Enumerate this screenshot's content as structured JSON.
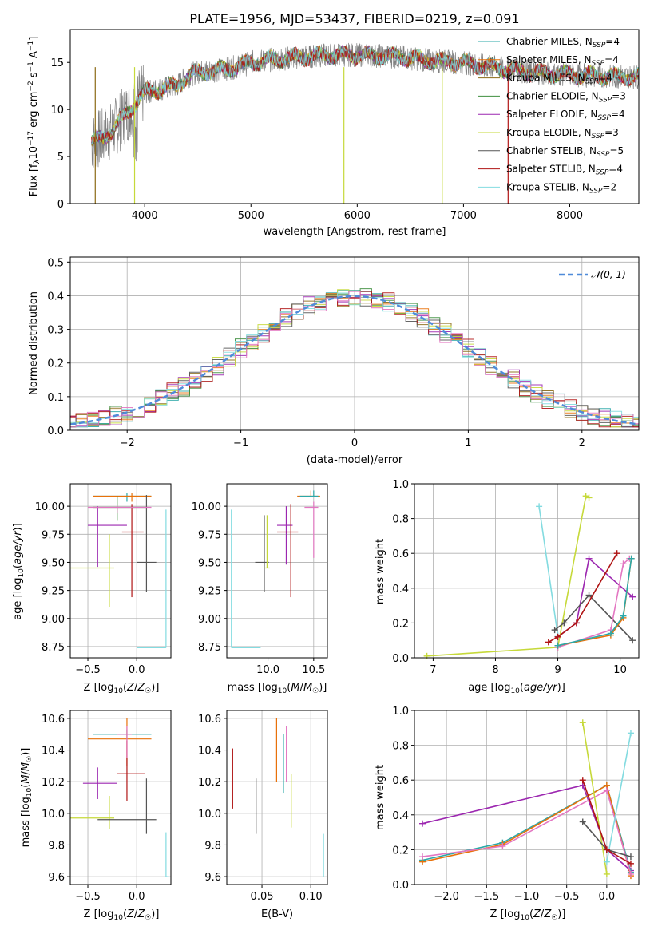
{
  "colors": {
    "Chabrier MILES": "#2ca8a8",
    "Salpeter MILES": "#e8710a",
    "Kroupa MILES": "#8b6914",
    "Chabrier ELODIE": "#3f8f3f",
    "Salpeter ELODIE": "#9c27b0",
    "Kroupa ELODIE": "#c6d93a",
    "Chabrier STELIB": "#555555",
    "Salpeter STELIB": "#b01515",
    "Kroupa STELIB": "#83dbe0"
  },
  "spectrum": {
    "title": "PLATE=1956, MJD=53437, FIBERID=0219, z=0.091",
    "xlabel": "wavelength [Angstrom, rest frame]",
    "ylabel": "Flux [fλ10⁻¹⁷ erg cm⁻² s⁻¹ A⁻¹]",
    "xlim": [
      3300,
      8650
    ],
    "ylim": [
      0,
      18.5
    ],
    "xticks": [
      4000,
      5000,
      6000,
      7000,
      8000
    ],
    "yticks": [
      0,
      5,
      10,
      15
    ],
    "legend": [
      {
        "label": "Chabrier MILES, N",
        "sub": "SSP",
        "n": "=4",
        "color": "#2ca8a8"
      },
      {
        "label": "Salpeter MILES, N",
        "sub": "SSP",
        "n": "=4",
        "color": "#e8710a"
      },
      {
        "label": "Kroupa MILES, N",
        "sub": "SSP",
        "n": "=4",
        "color": "#8b6914"
      },
      {
        "label": "Chabrier ELODIE, N",
        "sub": "SSP",
        "n": "=3",
        "color": "#3f8f3f"
      },
      {
        "label": "Salpeter ELODIE, N",
        "sub": "SSP",
        "n": "=4",
        "color": "#9c27b0"
      },
      {
        "label": "Kroupa ELODIE, N",
        "sub": "SSP",
        "n": "=3",
        "color": "#c6d93a"
      },
      {
        "label": "Chabrier STELIB, N",
        "sub": "SSP",
        "n": "=5",
        "color": "#555555"
      },
      {
        "label": "Salpeter STELIB, N",
        "sub": "SSP",
        "n": "=4",
        "color": "#b01515"
      },
      {
        "label": "Kroupa STELIB, N",
        "sub": "SSP",
        "n": "=2",
        "color": "#83dbe0"
      }
    ]
  },
  "chart_data": [
    {
      "type": "line",
      "title": "PLATE=1956, MJD=53437, FIBERID=0219, z=0.091",
      "xlabel": "wavelength [Angstrom, rest frame]",
      "ylabel": "Flux [fλ10⁻¹⁷ erg cm⁻² s⁻¹ A⁻¹]",
      "xlim": [
        3300,
        8650
      ],
      "ylim": [
        0,
        18.5
      ],
      "x": [
        3500,
        3600,
        3700,
        3800,
        3900,
        4000,
        4100,
        4200,
        4300,
        4400,
        4500,
        4700,
        4900,
        5000,
        5200,
        5400,
        5600,
        5800,
        6000,
        6200,
        6400,
        6600,
        6800,
        7000,
        7200,
        7400,
        7600,
        7800,
        8000,
        8200,
        8400,
        8600
      ],
      "series": [
        {
          "name": "data",
          "values": [
            6.5,
            7.0,
            7.8,
            9.2,
            10.5,
            11.8,
            12.1,
            12.3,
            12.5,
            13.5,
            14.0,
            14.2,
            14.6,
            15.0,
            15.3,
            15.5,
            15.7,
            15.8,
            15.8,
            15.7,
            15.6,
            15.3,
            15.1,
            15.0,
            14.6,
            14.3,
            14.0,
            13.8,
            13.7,
            13.6,
            13.5,
            13.5
          ]
        }
      ],
      "legend_position": "upper-right"
    },
    {
      "type": "histogram",
      "xlabel": "(data-model)/error",
      "ylabel": "Normed distribution",
      "xlim": [
        -2.5,
        2.5
      ],
      "ylim": [
        0,
        0.515
      ],
      "xticks": [
        -2,
        -1,
        0,
        1,
        2
      ],
      "yticks": [
        0.0,
        0.1,
        0.2,
        0.3,
        0.4,
        0.5
      ],
      "reference_curve": {
        "name": "𝒩(0, 1)",
        "mean": 0,
        "sigma": 1,
        "color": "#4f8bd9",
        "style": "dashed"
      },
      "legend_position": "upper-right"
    },
    {
      "type": "scatter-errorbar",
      "xlabel": "Z [log₁₀(Z/Z☉)]",
      "ylabel": "age  [log₁₀(age/yr)]",
      "xlim": [
        -0.68,
        0.35
      ],
      "ylim": [
        8.65,
        10.2
      ],
      "xticks": [
        -0.5,
        0.0
      ],
      "yticks": [
        8.75,
        9.0,
        9.25,
        9.5,
        9.75,
        10.0
      ],
      "points": [
        {
          "model": "Chabrier MILES",
          "x": -0.1,
          "y": 10.09,
          "xerr": [
            0.35,
            0.25
          ],
          "yerr": [
            0.05,
            0.03
          ]
        },
        {
          "model": "Salpeter MILES",
          "x": -0.05,
          "y": 10.09,
          "xerr": [
            0.4,
            0.2
          ],
          "yerr": [
            0.05,
            0.03
          ]
        },
        {
          "model": "Chabrier ELODIE",
          "x": -0.2,
          "y": 9.99,
          "xerr": [
            0.25,
            0.3
          ],
          "yerr": [
            0.12,
            0.1
          ]
        },
        {
          "model": "Salpeter ELODIE",
          "x": -0.4,
          "y": 9.83,
          "xerr": [
            0.1,
            0.3
          ],
          "yerr": [
            0.37,
            0.17
          ]
        },
        {
          "model": "Kroupa ELODIE",
          "x": -0.28,
          "y": 9.45,
          "xerr": [
            0.4,
            0.05
          ],
          "yerr": [
            0.35,
            0.3
          ]
        },
        {
          "model": "Chabrier STELIB",
          "x": 0.1,
          "y": 9.5,
          "xerr": [
            0.1,
            0.1
          ],
          "yerr": [
            0.26,
            0.6
          ]
        },
        {
          "model": "Salpeter STELIB",
          "x": -0.05,
          "y": 9.77,
          "xerr": [
            0.1,
            0.12
          ],
          "yerr": [
            0.58,
            0.25
          ]
        },
        {
          "model": "Kroupa STELIB",
          "x": 0.3,
          "y": 8.74,
          "xerr": [
            0.3,
            0.0
          ],
          "yerr": [
            0.0,
            1.23
          ]
        },
        {
          "model": "pink",
          "x": -0.2,
          "y": 9.99,
          "xerr": [
            0.3,
            0.35
          ],
          "yerr": [
            0.05,
            0.02
          ]
        }
      ]
    },
    {
      "type": "scatter-errorbar",
      "xlabel": "mass [log₁₀(M/M☉)]",
      "ylabel": "",
      "xlim": [
        9.55,
        10.65
      ],
      "ylim": [
        8.65,
        10.2
      ],
      "xticks": [
        10.0,
        10.5
      ],
      "yticks": [
        8.75,
        9.0,
        9.25,
        9.5,
        9.75,
        10.0
      ]
    },
    {
      "type": "line",
      "xlabel": "age  [log₁₀(age/yr)]",
      "ylabel": "mass weight",
      "xlim": [
        6.7,
        10.3
      ],
      "ylim": [
        0.0,
        1.0
      ],
      "xticks": [
        7,
        8,
        9,
        10
      ],
      "yticks": [
        0.0,
        0.2,
        0.4,
        0.6,
        0.8,
        1.0
      ],
      "series": [
        {
          "name": "Kroupa STELIB",
          "x": [
            8.7,
            9.0
          ],
          "values": [
            0.87,
            0.13
          ]
        },
        {
          "name": "Kroupa ELODIE",
          "x": [
            6.9,
            9.0,
            9.45,
            9.5
          ],
          "values": [
            0.01,
            0.06,
            0.93,
            0.92
          ]
        },
        {
          "name": "Salpeter ELODIE",
          "x": [
            9.0,
            9.3,
            9.5,
            10.2
          ],
          "values": [
            0.12,
            0.2,
            0.57,
            0.35
          ]
        },
        {
          "name": "Chabrier STELIB",
          "x": [
            8.95,
            9.1,
            9.5,
            10.2
          ],
          "values": [
            0.16,
            0.2,
            0.36,
            0.1
          ]
        },
        {
          "name": "Salpeter STELIB",
          "x": [
            8.85,
            9.0,
            9.3,
            9.95
          ],
          "values": [
            0.09,
            0.12,
            0.2,
            0.6
          ]
        },
        {
          "name": "pink",
          "x": [
            9.0,
            9.85,
            10.05,
            10.15
          ],
          "values": [
            0.06,
            0.16,
            0.54,
            0.57
          ]
        },
        {
          "name": "Salpeter MILES",
          "x": [
            9.0,
            9.85,
            10.05,
            10.18
          ],
          "values": [
            0.07,
            0.13,
            0.23,
            0.57
          ]
        },
        {
          "name": "Chabrier MILES",
          "x": [
            9.0,
            9.85,
            10.05,
            10.18
          ],
          "values": [
            0.07,
            0.14,
            0.24,
            0.57
          ]
        }
      ]
    },
    {
      "type": "scatter-errorbar",
      "xlabel": "Z [log₁₀(Z/Z☉)]",
      "ylabel": "mass [log₁₀(M/M☉)]",
      "xlim": [
        -0.68,
        0.35
      ],
      "ylim": [
        9.55,
        10.65
      ],
      "xticks": [
        -0.5,
        0.0
      ],
      "yticks": [
        9.6,
        9.8,
        10.0,
        10.2,
        10.4,
        10.6
      ]
    },
    {
      "type": "errorbar",
      "xlabel": "E(B-V)",
      "ylabel": "",
      "xlim": [
        0.014,
        0.117
      ],
      "ylim": [
        9.55,
        10.65
      ],
      "xticks": [
        0.0,
        0.05,
        0.1
      ],
      "yticks": [
        9.6,
        9.8,
        10.0,
        10.2,
        10.4,
        10.6
      ],
      "points": [
        {
          "model": "Salpeter STELIB",
          "x": 0.02,
          "y": 10.2,
          "yerr": [
            0.17,
            0.21
          ]
        },
        {
          "model": "Chabrier STELIB",
          "x": 0.044,
          "y": 10.05,
          "yerr": [
            0.18,
            0.17
          ]
        },
        {
          "model": "Salpeter MILES",
          "x": 0.065,
          "y": 10.4,
          "yerr": [
            0.2,
            0.2
          ]
        },
        {
          "model": "Chabrier MILES",
          "x": 0.072,
          "y": 10.25,
          "yerr": [
            0.12,
            0.25
          ]
        },
        {
          "model": "pink",
          "x": 0.075,
          "y": 10.35,
          "yerr": [
            0.15,
            0.2
          ]
        },
        {
          "model": "Kroupa ELODIE",
          "x": 0.08,
          "y": 10.05,
          "yerr": [
            0.14,
            0.2
          ]
        },
        {
          "model": "Kroupa STELIB",
          "x": 0.113,
          "y": 9.75,
          "yerr": [
            0.15,
            0.12
          ]
        }
      ]
    },
    {
      "type": "line",
      "xlabel": "Z [log₁₀(Z/Z☉)]",
      "ylabel": "mass weight",
      "xlim": [
        -2.4,
        0.4
      ],
      "ylim": [
        0.0,
        1.0
      ],
      "xticks": [
        -2.0,
        -1.5,
        -1.0,
        -0.5,
        0.0
      ],
      "yticks": [
        0.0,
        0.2,
        0.4,
        0.6,
        0.8,
        1.0
      ],
      "series": [
        {
          "name": "Salpeter ELODIE",
          "x": [
            -2.3,
            -0.3,
            0.0,
            0.3
          ],
          "values": [
            0.35,
            0.57,
            0.2,
            0.08
          ]
        },
        {
          "name": "Chabrier MILES",
          "x": [
            -2.3,
            -1.3,
            0.0,
            0.3
          ],
          "values": [
            0.14,
            0.24,
            0.57,
            0.07
          ]
        },
        {
          "name": "Salpeter MILES",
          "x": [
            -2.3,
            -1.3,
            0.0,
            0.3
          ],
          "values": [
            0.13,
            0.23,
            0.57,
            0.05
          ]
        },
        {
          "name": "pink",
          "x": [
            -2.3,
            -1.3,
            0.0,
            0.3
          ],
          "values": [
            0.16,
            0.22,
            0.54,
            0.06
          ]
        },
        {
          "name": "Kroupa ELODIE",
          "x": [
            -0.3,
            0.0
          ],
          "values": [
            0.93,
            0.06
          ]
        },
        {
          "name": "Kroupa STELIB",
          "x": [
            0.0,
            0.3
          ],
          "values": [
            0.13,
            0.87
          ]
        },
        {
          "name": "Chabrier STELIB",
          "x": [
            -0.3,
            0.0,
            0.3
          ],
          "values": [
            0.36,
            0.2,
            0.16
          ]
        },
        {
          "name": "Salpeter STELIB",
          "x": [
            -0.3,
            0.0,
            0.3
          ],
          "values": [
            0.6,
            0.2,
            0.12
          ]
        }
      ]
    }
  ],
  "labels": {
    "spec_title": "PLATE=1956, MJD=53437, FIBERID=0219, z=0.091",
    "spec_xlabel": "wavelength [Angstrom, rest frame]",
    "hist_xlabel": "(data-model)/error",
    "hist_ylabel": "Normed distribution",
    "norm_legend": "𝒩(0, 1)",
    "ebv_xlabel": "E(B-V)",
    "mass_weight": "mass weight"
  }
}
